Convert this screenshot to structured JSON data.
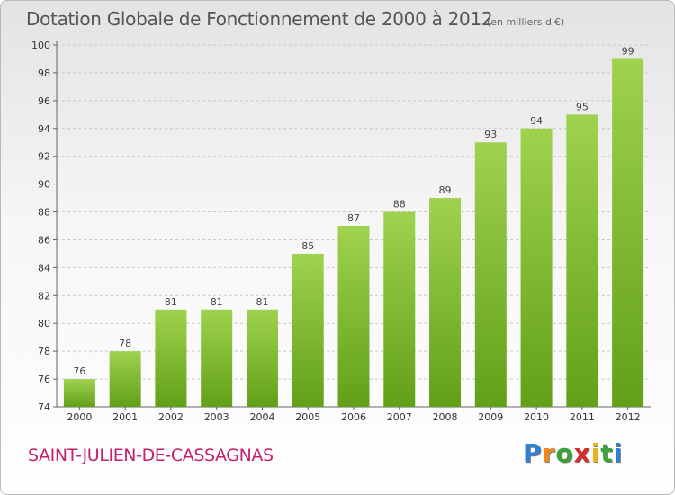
{
  "header": {
    "title": "Dotation Globale de Fonctionnement de 2000 à 2012",
    "subtitle": "(en milliers d'€)"
  },
  "footer": {
    "commune": "SAINT-JULIEN-DE-CASSAGNAS",
    "logo_letters": [
      "P",
      "r",
      "o",
      "x",
      "i",
      "t",
      "i"
    ],
    "logo_colors": [
      "#2e7fd6",
      "#f08a1c",
      "#3aa33a",
      "#d92b2b",
      "#f0b01c",
      "#3aa33a",
      "#2e7fd6"
    ]
  },
  "chart_data": {
    "type": "bar",
    "title": "Dotation Globale de Fonctionnement de 2000 à 2012",
    "subtitle": "(en milliers d'€)",
    "categories": [
      "2000",
      "2001",
      "2002",
      "2003",
      "2004",
      "2005",
      "2006",
      "2007",
      "2008",
      "2009",
      "2010",
      "2011",
      "2012"
    ],
    "values": [
      76,
      78,
      81,
      81,
      81,
      85,
      87,
      88,
      89,
      93,
      94,
      95,
      99
    ],
    "ylim": [
      74,
      100
    ],
    "yticks": [
      74,
      76,
      78,
      80,
      82,
      84,
      86,
      88,
      90,
      92,
      94,
      96,
      98,
      100
    ],
    "grid": true,
    "bar_color_top": "#9fd24f",
    "bar_color_bottom": "#62a018"
  }
}
